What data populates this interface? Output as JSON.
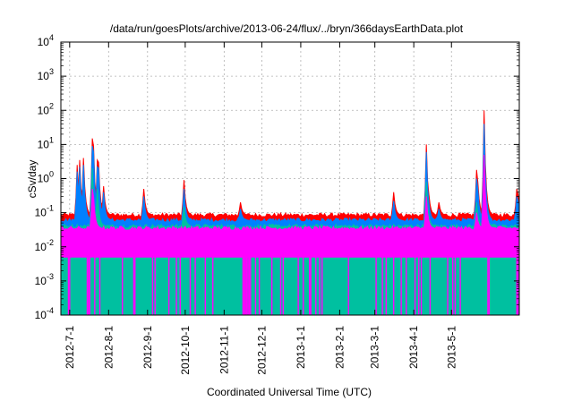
{
  "chart_data": {
    "type": "area",
    "title": "/data/run/goesPlots/archive/2013-06-24/flux/../bryn/366daysEarthData.plot",
    "xlabel": "Coordinated Universal Time (UTC)",
    "ylabel": "cSv/day",
    "x_start": "2012-06-24",
    "x_end": "2013-06-24",
    "y_scale": "log",
    "ylim": [
      0.0001,
      10000
    ],
    "y_ticks": [
      {
        "value": 0.0001,
        "base": "10",
        "exp": "-4"
      },
      {
        "value": 0.001,
        "base": "10",
        "exp": "-3"
      },
      {
        "value": 0.01,
        "base": "10",
        "exp": "-2"
      },
      {
        "value": 0.1,
        "base": "10",
        "exp": "-1"
      },
      {
        "value": 1,
        "base": "10",
        "exp": "0"
      },
      {
        "value": 10,
        "base": "10",
        "exp": "1"
      },
      {
        "value": 100,
        "base": "10",
        "exp": "2"
      },
      {
        "value": 1000,
        "base": "10",
        "exp": "3"
      },
      {
        "value": 10000,
        "base": "10",
        "exp": "4"
      }
    ],
    "x_ticks": [
      "2012-7-1",
      "2012-8-1",
      "2012-9-1",
      "2012-10-1",
      "2012-11-1",
      "2012-12-1",
      "2013-1-1",
      "2013-2-1",
      "2013-3-1",
      "2013-4-1",
      "2013-5-1"
    ],
    "x_tick_dates": [
      "2012-07-01",
      "2012-08-01",
      "2012-09-01",
      "2012-10-01",
      "2012-11-01",
      "2012-12-01",
      "2013-01-01",
      "2013-02-01",
      "2013-03-01",
      "2013-04-01",
      "2013-05-01"
    ],
    "grid": true,
    "series": [
      {
        "color": "#ff0000",
        "baseline": 0.085,
        "peaks": [
          [
            "2012-07-07",
            2.5
          ],
          [
            "2012-07-09",
            3.5
          ],
          [
            "2012-07-12",
            4.0
          ],
          [
            "2012-07-19",
            15
          ],
          [
            "2012-07-20",
            9
          ],
          [
            "2012-07-23",
            3.5
          ],
          [
            "2012-07-24",
            3
          ],
          [
            "2012-07-28",
            0.6
          ],
          [
            "2012-08-29",
            0.5
          ],
          [
            "2012-09-30",
            0.9
          ],
          [
            "2012-11-14",
            0.2
          ],
          [
            "2013-03-16",
            0.4
          ],
          [
            "2013-04-11",
            10
          ],
          [
            "2013-04-13",
            0.35
          ],
          [
            "2013-04-21",
            0.2
          ],
          [
            "2013-05-21",
            1.8
          ],
          [
            "2013-05-22",
            0.8
          ],
          [
            "2013-05-27",
            100
          ],
          [
            "2013-06-22",
            0.5
          ],
          [
            "2013-06-23",
            0.35
          ]
        ]
      },
      {
        "color": "#0080ff",
        "baseline": 0.06,
        "peaks": [
          [
            "2012-07-07",
            1.6
          ],
          [
            "2012-07-09",
            2.2
          ],
          [
            "2012-07-12",
            2.5
          ],
          [
            "2012-07-19",
            9
          ],
          [
            "2012-07-20",
            6
          ],
          [
            "2012-07-23",
            2.2
          ],
          [
            "2012-07-24",
            2
          ],
          [
            "2012-07-28",
            0.4
          ],
          [
            "2012-08-29",
            0.3
          ],
          [
            "2012-09-30",
            0.5
          ],
          [
            "2012-11-14",
            0.13
          ],
          [
            "2013-03-16",
            0.22
          ],
          [
            "2013-04-11",
            6
          ],
          [
            "2013-04-13",
            0.2
          ],
          [
            "2013-04-21",
            0.13
          ],
          [
            "2013-05-21",
            1
          ],
          [
            "2013-05-22",
            0.5
          ],
          [
            "2013-05-27",
            40
          ],
          [
            "2013-06-22",
            0.3
          ],
          [
            "2013-06-23",
            0.22
          ]
        ]
      },
      {
        "color": "#00c0a0",
        "baseline": 0.04,
        "peaks": [
          [
            "2012-07-19",
            2
          ],
          [
            "2012-07-23",
            0.5
          ],
          [
            "2012-09-30",
            0.15
          ],
          [
            "2013-04-11",
            0.8
          ],
          [
            "2013-05-27",
            2
          ],
          [
            "2013-05-21",
            0.2
          ]
        ]
      },
      {
        "color": "#ff00ff",
        "baseline": 0.035,
        "floor": 0.005,
        "dropout_min": 0.0001,
        "peaks": [
          [
            "2012-07-19",
            0.5
          ],
          [
            "2012-07-20",
            0.3
          ],
          [
            "2013-04-11",
            0.3
          ],
          [
            "2013-05-27",
            5
          ],
          [
            "2013-05-21",
            0.1
          ]
        ]
      }
    ]
  }
}
